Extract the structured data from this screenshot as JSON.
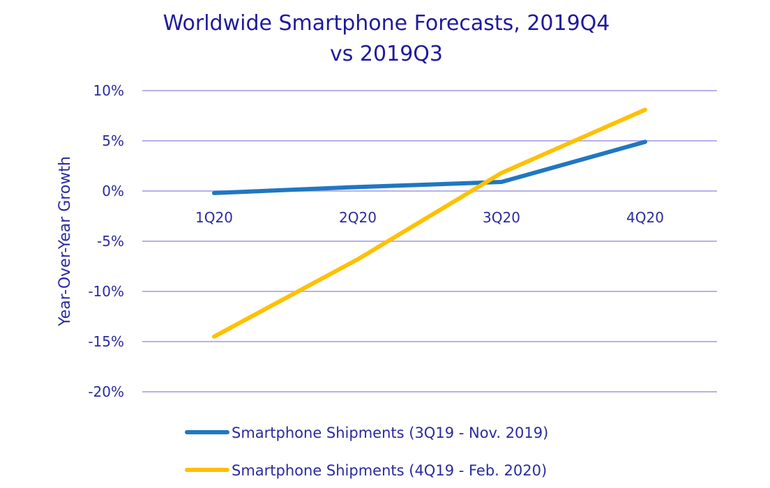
{
  "chart_data": {
    "type": "line",
    "title": "Worldwide Smartphone Forecasts, 2019Q4 vs 2019Q3",
    "title_lines": [
      "Worldwide Smartphone Forecasts, 2019Q4",
      "vs 2019Q3"
    ],
    "xlabel": "",
    "ylabel": "Year-Over-Year Growth",
    "categories": [
      "1Q20",
      "2Q20",
      "3Q20",
      "4Q20"
    ],
    "ylim": [
      -20,
      10
    ],
    "yticks": [
      10,
      5,
      0,
      -5,
      -10,
      -15,
      -20
    ],
    "ytick_labels": [
      "10%",
      "5%",
      "0%",
      "-5%",
      "-10%",
      "-15%",
      "-20%"
    ],
    "grid": true,
    "legend_position": "bottom",
    "series": [
      {
        "name": "Smartphone Shipments (3Q19 - Nov. 2019)",
        "color": "#2077c0",
        "values": [
          -0.2,
          0.4,
          0.9,
          4.9
        ]
      },
      {
        "name": "Smartphone Shipments (4Q19 - Feb. 2020)",
        "color": "#ffc000",
        "values": [
          -14.5,
          -6.8,
          1.8,
          8.1
        ]
      }
    ],
    "colors": {
      "text": "#2a2aa0",
      "title": "#1f1a9e",
      "grid": "#b8b0ee"
    }
  }
}
